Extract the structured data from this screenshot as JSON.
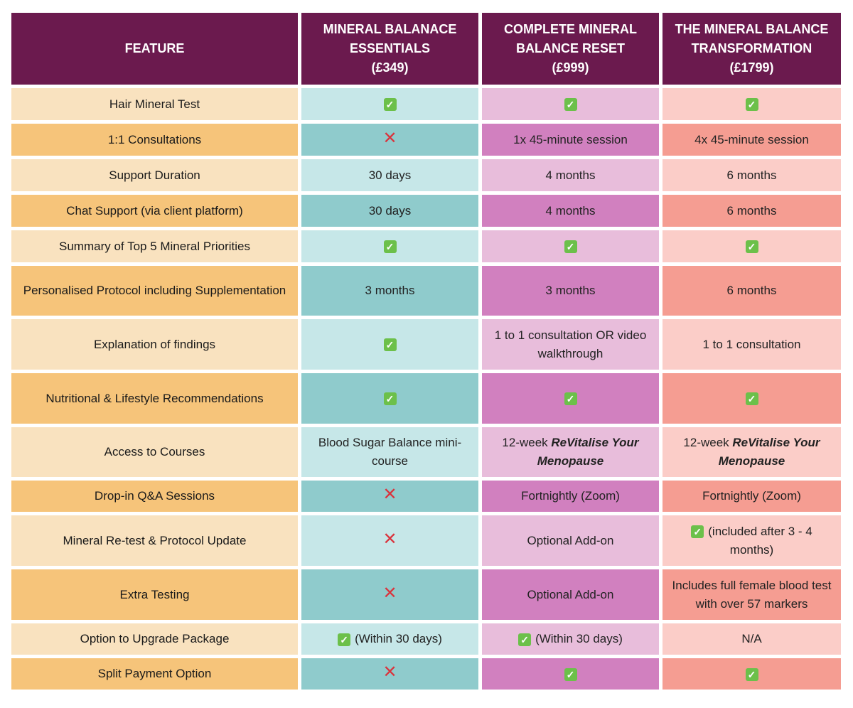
{
  "colors": {
    "header": "#6b1a4e",
    "check": "#6cc04a",
    "cross": "#d9343d"
  },
  "header": [
    "FEATURE",
    "MINERAL BALANACE ESSENTIALS (£349)",
    "COMPLETE MINERAL BALANCE RESET (£999)",
    "THE MINERAL BALANCE TRANSFORMATION (£1799)"
  ],
  "header_lines": [
    [
      "FEATURE"
    ],
    [
      "MINERAL BALANACE",
      "ESSENTIALS",
      "(£349)"
    ],
    [
      "COMPLETE MINERAL",
      "BALANCE RESET",
      "(£999)"
    ],
    [
      "THE MINERAL BALANCE",
      "TRANSFORMATION",
      "(£1799)"
    ]
  ],
  "rows": [
    {
      "feature": "Hair Mineral Test",
      "cells": [
        {
          "icon": "check"
        },
        {
          "icon": "check"
        },
        {
          "icon": "check"
        }
      ]
    },
    {
      "feature": "1:1 Consultations",
      "cells": [
        {
          "icon": "cross"
        },
        {
          "text": "1x 45-minute session"
        },
        {
          "text": "4x 45-minute session"
        }
      ]
    },
    {
      "feature": "Support Duration",
      "cells": [
        {
          "text": "30 days"
        },
        {
          "text": "4 months"
        },
        {
          "text": "6 months"
        }
      ]
    },
    {
      "feature": "Chat Support (via client platform)",
      "cells": [
        {
          "text": "30 days"
        },
        {
          "text": "4 months"
        },
        {
          "text": "6 months"
        }
      ]
    },
    {
      "feature": "Summary of Top 5 Mineral Priorities",
      "cells": [
        {
          "icon": "check"
        },
        {
          "icon": "check"
        },
        {
          "icon": "check"
        }
      ]
    },
    {
      "feature": "Personalised Protocol including Supplementation",
      "cells": [
        {
          "text": "3 months"
        },
        {
          "text": "3 months"
        },
        {
          "text": "6 months"
        }
      ]
    },
    {
      "feature": "Explanation of findings",
      "cells": [
        {
          "icon": "check"
        },
        {
          "text": "1 to 1 consultation OR video walkthrough"
        },
        {
          "text": "1 to 1 consultation"
        }
      ]
    },
    {
      "feature": "Nutritional & Lifestyle Recommendations",
      "cells": [
        {
          "icon": "check"
        },
        {
          "icon": "check"
        },
        {
          "icon": "check"
        }
      ]
    },
    {
      "feature": "Access to Courses",
      "cells": [
        {
          "text": "Blood Sugar Balance mini-course"
        },
        {
          "text": "12-week ",
          "em": "ReVitalise Your Menopause"
        },
        {
          "text": "12-week ",
          "em": "ReVitalise Your Menopause"
        }
      ]
    },
    {
      "feature": "Drop-in Q&A Sessions",
      "cells": [
        {
          "icon": "cross"
        },
        {
          "text": "Fortnightly (Zoom)"
        },
        {
          "text": "Fortnightly (Zoom)"
        }
      ]
    },
    {
      "feature": "Mineral Re-test & Protocol Update",
      "cells": [
        {
          "icon": "cross"
        },
        {
          "text": "Optional Add-on"
        },
        {
          "icon": "check",
          "text": "(included after 3 - 4 months)"
        }
      ]
    },
    {
      "feature": "Extra Testing",
      "cells": [
        {
          "icon": "cross"
        },
        {
          "text": "Optional Add-on"
        },
        {
          "text": "Includes full female blood test with over 57 markers"
        }
      ]
    },
    {
      "feature": "Option to Upgrade Package",
      "cells": [
        {
          "icon": "check",
          "text": "(Within 30 days)"
        },
        {
          "icon": "check",
          "text": "(Within 30 days)"
        },
        {
          "text": "N/A"
        }
      ]
    },
    {
      "feature": "Split Payment Option",
      "cells": [
        {
          "icon": "cross"
        },
        {
          "icon": "check"
        },
        {
          "icon": "check"
        }
      ]
    }
  ]
}
